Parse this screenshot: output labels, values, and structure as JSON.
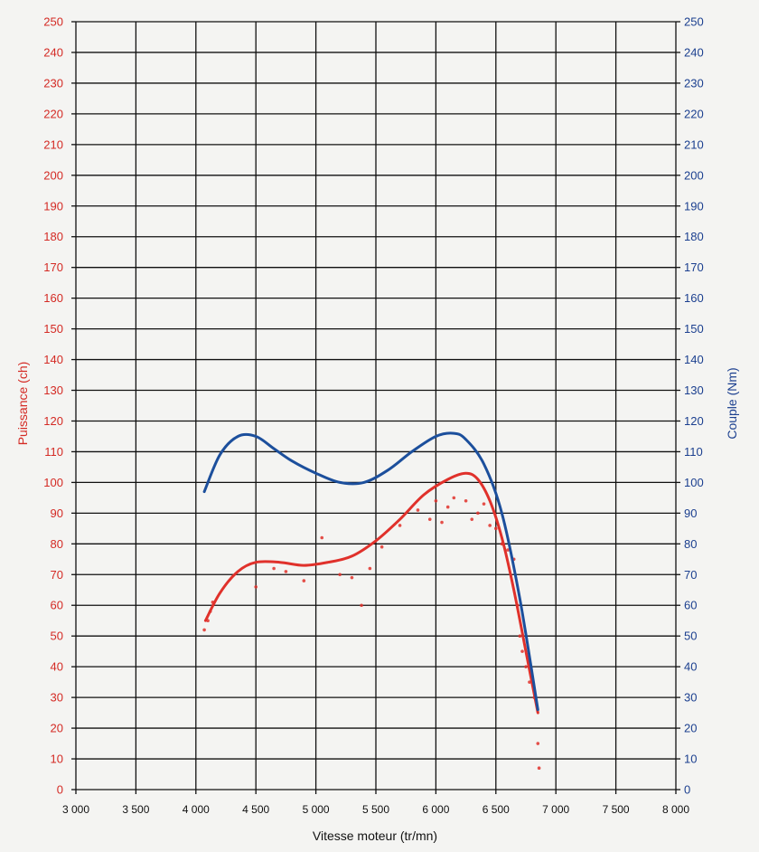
{
  "chart_data": {
    "type": "line",
    "title": "",
    "xlabel": "Vitesse moteur (tr/mn)",
    "ylabel_left": "Puissance (ch)",
    "ylabel_right": "Couple (Nm)",
    "xlim": [
      3000,
      8000
    ],
    "ylim_left": [
      0,
      250
    ],
    "ylim_right": [
      0,
      250
    ],
    "x_ticks": [
      3000,
      3500,
      4000,
      4500,
      5000,
      5500,
      6000,
      6500,
      7000,
      7500,
      8000
    ],
    "x_tick_labels": [
      "3 000",
      "3 500",
      "4 000",
      "4 500",
      "5 000",
      "5 500",
      "6 000",
      "6 500",
      "7 000",
      "7 500",
      "8 000"
    ],
    "y_ticks": [
      0,
      10,
      20,
      30,
      40,
      50,
      60,
      70,
      80,
      90,
      100,
      110,
      120,
      130,
      140,
      150,
      160,
      170,
      180,
      190,
      200,
      210,
      220,
      230,
      240,
      250
    ],
    "grid": true,
    "colors": {
      "power": "#e0312b",
      "torque": "#1c4f9c",
      "grid": "#111111",
      "left_axis": "#d42a24",
      "right_axis": "#1b3f8f"
    },
    "series": [
      {
        "key": "power",
        "axis": "left",
        "x": [
          4080,
          4200,
          4350,
          4500,
          4700,
          4900,
          5100,
          5300,
          5500,
          5700,
          5900,
          6100,
          6250,
          6350,
          6450,
          6550,
          6650,
          6750,
          6850
        ],
        "values": [
          55,
          64,
          71,
          74,
          74,
          73,
          74,
          76,
          81,
          88,
          96,
          101,
          103,
          101,
          94,
          82,
          65,
          45,
          25
        ]
      },
      {
        "key": "torque",
        "axis": "right",
        "x": [
          4070,
          4200,
          4350,
          4500,
          4650,
          4800,
          5000,
          5200,
          5400,
          5600,
          5800,
          6000,
          6150,
          6250,
          6400,
          6550,
          6700,
          6850
        ],
        "values": [
          97,
          109,
          115,
          115,
          111,
          107,
          103,
          100,
          100,
          104,
          110,
          115,
          116,
          114,
          106,
          90,
          62,
          26
        ]
      },
      {
        "key": "power-scatter",
        "axis": "left",
        "x": [
          4070,
          4100,
          4120,
          4140,
          4500,
          4650,
          4750,
          4900,
          5050,
          5200,
          5300,
          5380,
          5450,
          5550,
          5700,
          5850,
          5950,
          6000,
          6050,
          6100,
          6150,
          6250,
          6300,
          6350,
          6400,
          6450,
          6500,
          6550,
          6600,
          6650,
          6680,
          6700,
          6720,
          6750,
          6780,
          6820,
          6850,
          6860
        ],
        "values": [
          52,
          55,
          58,
          61,
          66,
          72,
          71,
          68,
          82,
          70,
          69,
          60,
          72,
          79,
          86,
          91,
          88,
          94,
          87,
          92,
          95,
          94,
          88,
          90,
          93,
          86,
          85,
          80,
          78,
          75,
          60,
          50,
          45,
          40,
          35,
          30,
          15,
          7
        ]
      }
    ]
  }
}
